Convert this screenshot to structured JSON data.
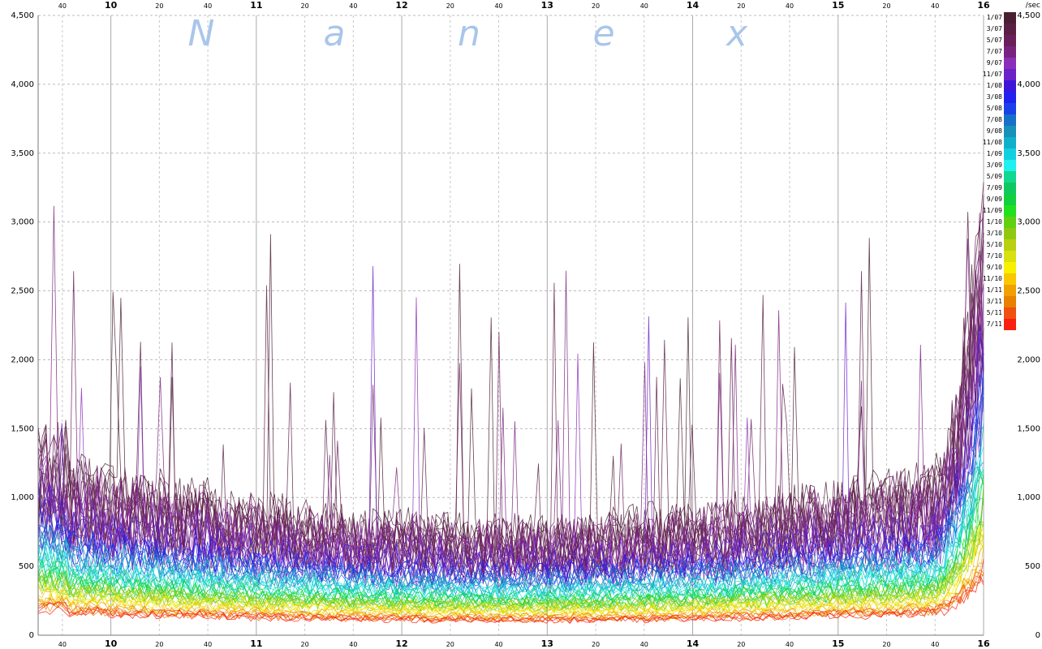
{
  "chart_data": {
    "type": "line",
    "title": "",
    "watermark": [
      "N",
      "a",
      "n",
      "e",
      "x"
    ],
    "y_unit": "/sec",
    "ylim": [
      0,
      4500
    ],
    "y_ticks": [
      0,
      500,
      1000,
      1500,
      2000,
      2500,
      3000,
      3500,
      4000,
      4500
    ],
    "y_tick_labels": [
      "0",
      "500",
      "1,000",
      "1,500",
      "2,000",
      "2,500",
      "3,000",
      "3,500",
      "4,000",
      "4,500"
    ],
    "x_range_hours": [
      9.5,
      16.0
    ],
    "hour_labels": [
      "10",
      "11",
      "12",
      "13",
      "14",
      "15",
      "16"
    ],
    "minute_labels": [
      "20",
      "40"
    ],
    "grid": true,
    "legend_placement": "right",
    "series": [
      {
        "name": "1/07",
        "color": "#4a1f33",
        "base": 1020
      },
      {
        "name": "3/07",
        "color": "#5a1f45",
        "base": 990
      },
      {
        "name": "5/07",
        "color": "#6a1f5a",
        "base": 950
      },
      {
        "name": "7/07",
        "color": "#7a2280",
        "base": 900
      },
      {
        "name": "9/07",
        "color": "#8a2fb8",
        "base": 860
      },
      {
        "name": "11/07",
        "color": "#6b20c8",
        "base": 820
      },
      {
        "name": "1/08",
        "color": "#3d15d8",
        "base": 760
      },
      {
        "name": "3/08",
        "color": "#2020f0",
        "base": 700
      },
      {
        "name": "5/08",
        "color": "#1a40e8",
        "base": 650
      },
      {
        "name": "7/08",
        "color": "#1670c8",
        "base": 610
      },
      {
        "name": "9/08",
        "color": "#1890b8",
        "base": 580
      },
      {
        "name": "11/08",
        "color": "#10b0c8",
        "base": 540
      },
      {
        "name": "1/09",
        "color": "#10d0e0",
        "base": 500
      },
      {
        "name": "3/09",
        "color": "#20f0f0",
        "base": 460
      },
      {
        "name": "5/09",
        "color": "#10d890",
        "base": 430
      },
      {
        "name": "7/09",
        "color": "#10c860",
        "base": 400
      },
      {
        "name": "9/09",
        "color": "#10d040",
        "base": 380
      },
      {
        "name": "11/09",
        "color": "#20e020",
        "base": 360
      },
      {
        "name": "1/10",
        "color": "#60d010",
        "base": 340
      },
      {
        "name": "3/10",
        "color": "#90c810",
        "base": 320
      },
      {
        "name": "5/10",
        "color": "#b8d010",
        "base": 300
      },
      {
        "name": "7/10",
        "color": "#d8e010",
        "base": 280
      },
      {
        "name": "9/10",
        "color": "#f8f000",
        "base": 260
      },
      {
        "name": "11/10",
        "color": "#f8c800",
        "base": 240
      },
      {
        "name": "1/11",
        "color": "#f0a000",
        "base": 220
      },
      {
        "name": "3/11",
        "color": "#e88000",
        "base": 200
      },
      {
        "name": "5/11",
        "color": "#f05010",
        "base": 185
      },
      {
        "name": "7/11",
        "color": "#f82010",
        "base": 170
      }
    ]
  }
}
